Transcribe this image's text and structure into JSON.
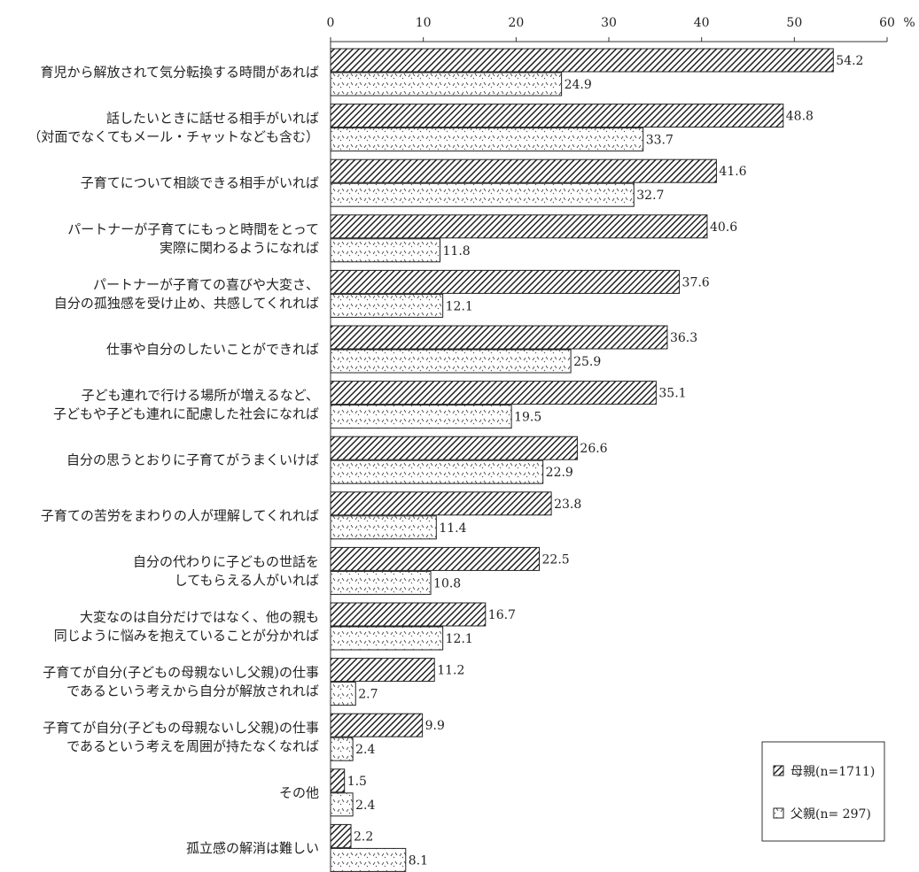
{
  "chart_data": {
    "type": "bar",
    "orientation": "horizontal",
    "unit": "%",
    "xlim": [
      0,
      60
    ],
    "ticks": [
      0,
      10,
      20,
      30,
      40,
      50,
      60
    ],
    "grid": false,
    "legend_position": "bottom-right",
    "categories": [
      [
        "育児から解放されて気分転換する時間があれば"
      ],
      [
        "話したいときに話せる相手がいれば",
        "（対面でなくてもメール・チャットなども含む）"
      ],
      [
        "子育てについて相談できる相手がいれば"
      ],
      [
        "パートナーが子育てにもっと時間をとって",
        "実際に関わるようになれば"
      ],
      [
        "パートナーが子育ての喜びや大変さ、",
        "自分の孤独感を受け止め、共感してくれれば"
      ],
      [
        "仕事や自分のしたいことができれば"
      ],
      [
        "子ども連れで行ける場所が増えるなど、",
        "子どもや子ども連れに配慮した社会になれば"
      ],
      [
        "自分の思うとおりに子育てがうまくいけば"
      ],
      [
        "子育ての苦労をまわりの人が理解してくれれば"
      ],
      [
        "自分の代わりに子どもの世話を",
        "してもらえる人がいれば"
      ],
      [
        "大変なのは自分だけではなく、他の親も",
        "同じように悩みを抱えていることが分かれば"
      ],
      [
        "子育てが自分(子どもの母親ないし父親)の仕事",
        "であるという考えから自分が解放されれば"
      ],
      [
        "子育てが自分(子どもの母親ないし父親)の仕事",
        "であるという考えを周囲が持たなくなれば"
      ],
      [
        "その他"
      ],
      [
        "孤立感の解消は難しい"
      ]
    ],
    "series": [
      {
        "name": "母親(n=1711)",
        "values": [
          54.2,
          48.8,
          41.6,
          40.6,
          37.6,
          36.3,
          35.1,
          26.6,
          23.8,
          22.5,
          16.7,
          11.2,
          9.9,
          1.5,
          2.2
        ],
        "pattern": "hatch",
        "color": "#333333"
      },
      {
        "name": "父親(n= 297)",
        "values": [
          24.9,
          33.7,
          32.7,
          11.8,
          12.1,
          25.9,
          19.5,
          22.9,
          11.4,
          10.8,
          12.1,
          2.7,
          2.4,
          2.4,
          8.1
        ],
        "pattern": "dots",
        "color": "#ffffff"
      }
    ]
  }
}
